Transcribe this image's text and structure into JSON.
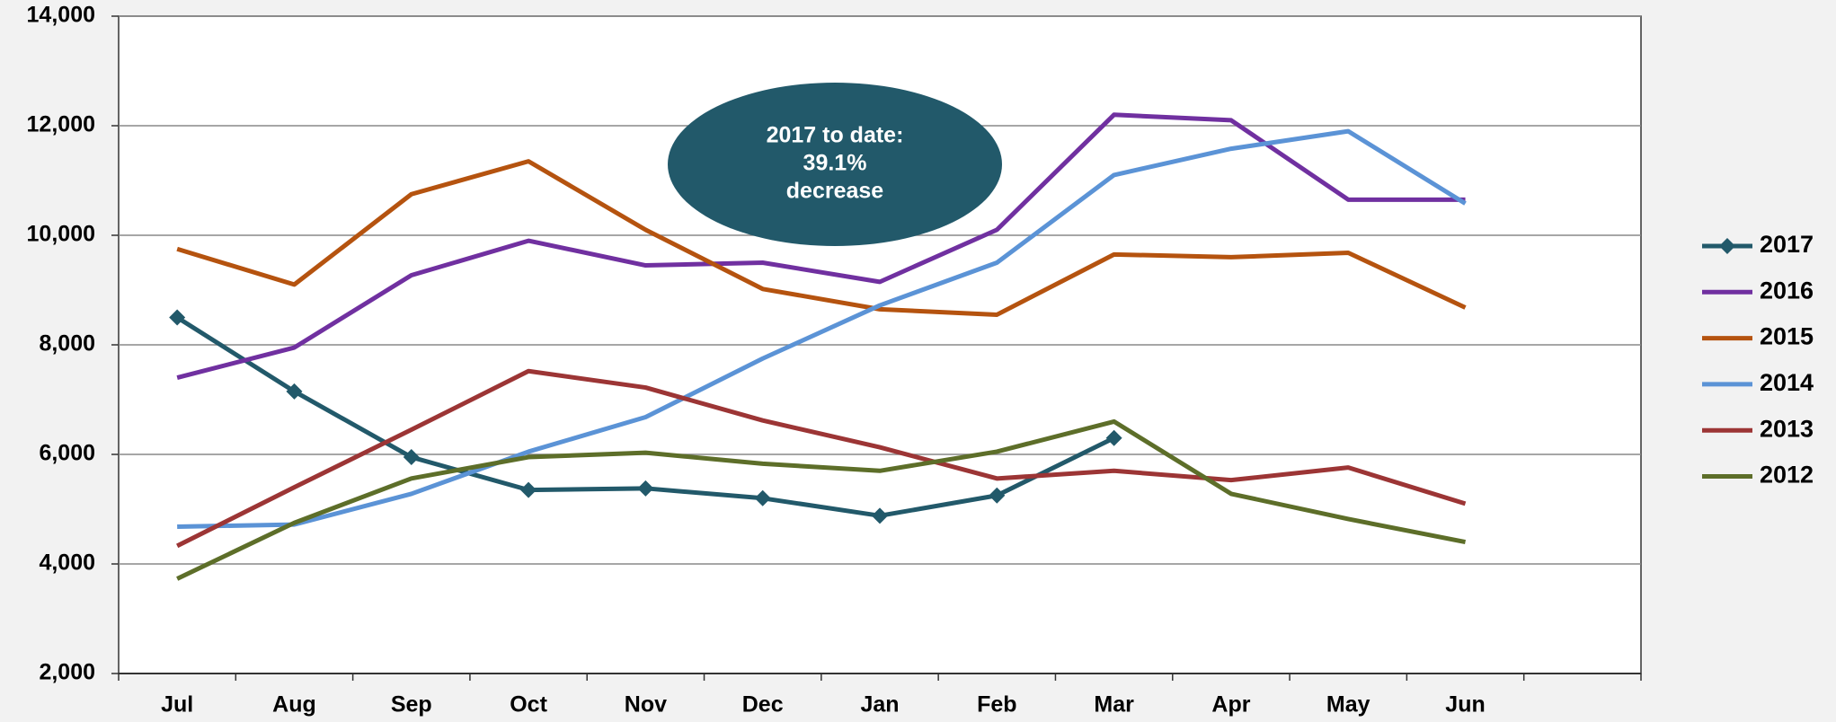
{
  "chart_data": {
    "type": "line",
    "categories": [
      "Jul",
      "Aug",
      "Sep",
      "Oct",
      "Nov",
      "Dec",
      "Jan",
      "Feb",
      "Mar",
      "Apr",
      "May",
      "Jun",
      null
    ],
    "series": [
      {
        "name": "2017",
        "color": "#22596a",
        "marker": "diamond",
        "values": [
          8500,
          7150,
          5950,
          5350,
          5380,
          5200,
          4880,
          5250,
          6300,
          null,
          null,
          null,
          null
        ]
      },
      {
        "name": "2016",
        "color": "#7030a0",
        "values": [
          7400,
          7950,
          9270,
          9900,
          9450,
          9500,
          9150,
          10100,
          12200,
          12100,
          10650,
          10650,
          null
        ]
      },
      {
        "name": "2015",
        "color": "#b5530f",
        "values": [
          9750,
          9100,
          10750,
          11350,
          10100,
          9020,
          8650,
          8550,
          9650,
          9600,
          9680,
          8680,
          null
        ]
      },
      {
        "name": "2014",
        "color": "#5b93d6",
        "values": [
          4680,
          4720,
          5280,
          6050,
          6680,
          7750,
          8720,
          9500,
          11100,
          11580,
          11900,
          10580,
          null
        ]
      },
      {
        "name": "2013",
        "color": "#9c3535",
        "values": [
          4330,
          5400,
          6450,
          7520,
          7220,
          6620,
          6130,
          5560,
          5700,
          5530,
          5760,
          5100,
          null
        ]
      },
      {
        "name": "2012",
        "color": "#5d6e29",
        "values": [
          3730,
          4750,
          5560,
          5950,
          6030,
          5830,
          5700,
          6050,
          6600,
          5280,
          4820,
          4400,
          null
        ]
      }
    ],
    "ylim": [
      2000,
      14000
    ],
    "yticks": [
      {
        "value": 2000,
        "label": "2,000"
      },
      {
        "value": 4000,
        "label": "4,000"
      },
      {
        "value": 6000,
        "label": "6,000"
      },
      {
        "value": 8000,
        "label": "8,000"
      },
      {
        "value": 10000,
        "label": "10,000"
      },
      {
        "value": 12000,
        "label": "12,000"
      },
      {
        "value": 14000,
        "label": "14,000"
      }
    ],
    "grid": true,
    "legend": "right",
    "annotation": {
      "lines": [
        "2017 to date:",
        "39.1%",
        "decrease"
      ],
      "color": "#22596a"
    }
  }
}
